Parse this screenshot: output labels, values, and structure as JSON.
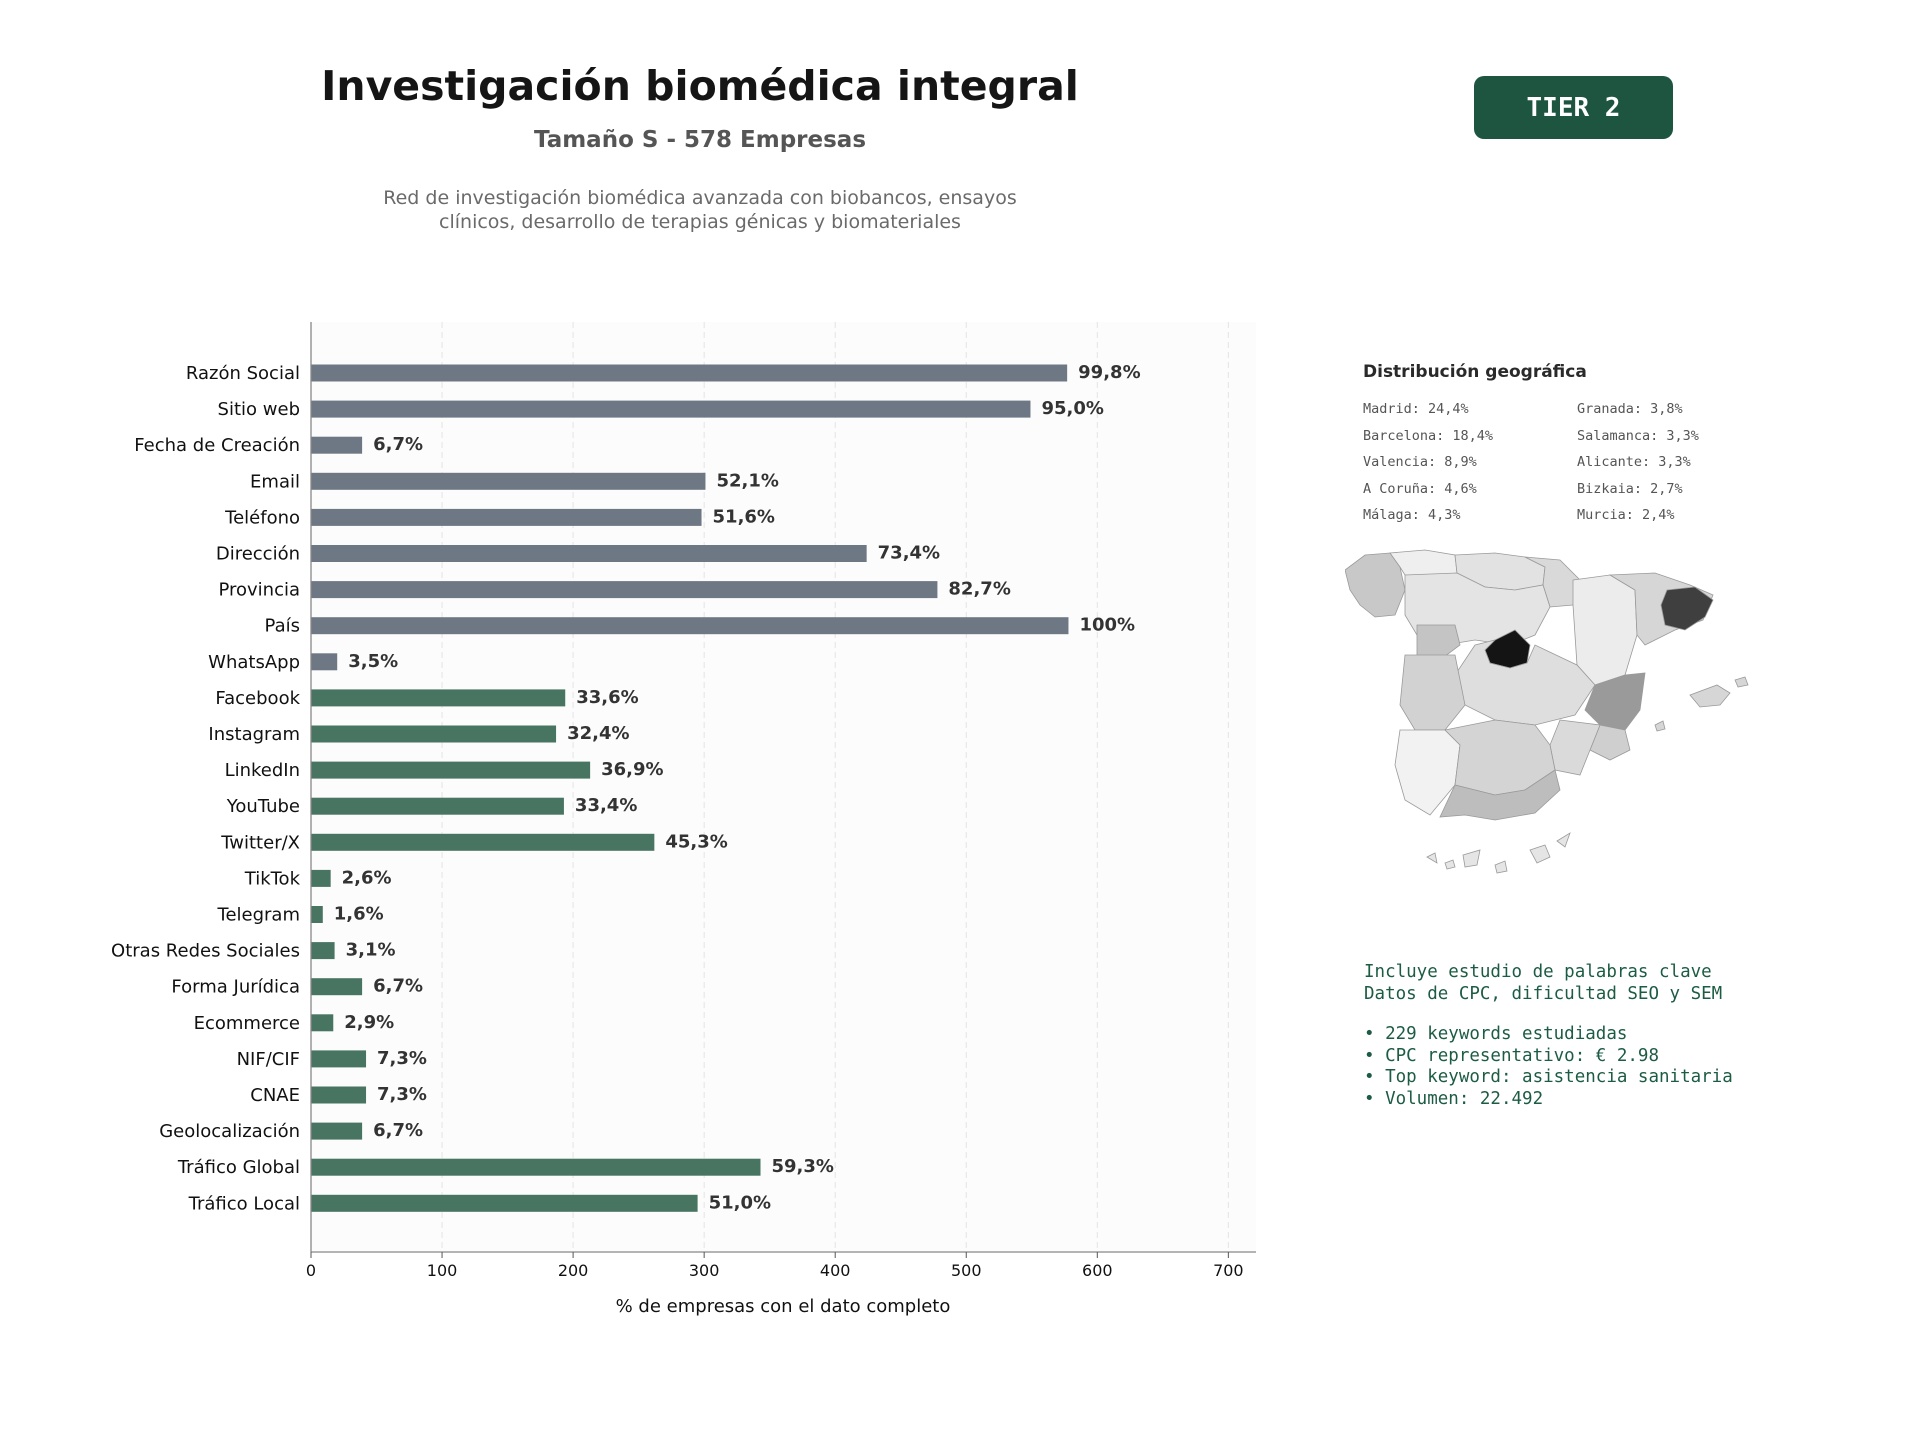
{
  "header": {
    "title": "Investigación biomédica integral",
    "subtitle": "Tamaño S - 578 Empresas",
    "description_line1": "Red de investigación biomédica avanzada con biobancos, ensayos",
    "description_line2": "clínicos, desarrollo de terapias génicas y biomateriales",
    "tier_badge": "TIER 2"
  },
  "colors": {
    "badge": "#1d5541",
    "contact_bar": "#6e7884",
    "social_bar": "#487462",
    "value_label": "#333333",
    "keyword_text": "#1d5c44"
  },
  "chart_data": {
    "type": "bar",
    "orientation": "horizontal",
    "xlabel": "% de empresas con el dato completo",
    "xlim": [
      0,
      722
    ],
    "xticks": [
      0,
      100,
      200,
      300,
      400,
      500,
      600,
      700
    ],
    "grid": "vertical dashed",
    "categories": [
      "Razón Social",
      "Sitio web",
      "Fecha de Creación",
      "Email",
      "Teléfono",
      "Dirección",
      "Provincia",
      "País",
      "WhatsApp",
      "Facebook",
      "Instagram",
      "LinkedIn",
      "YouTube",
      "Twitter/X",
      "TikTok",
      "Telegram",
      "Otras Redes Sociales",
      "Forma Jurídica",
      "Ecommerce",
      "NIF/CIF",
      "CNAE",
      "Geolocalización",
      "Tráfico Global",
      "Tráfico Local"
    ],
    "values": [
      577,
      549,
      39,
      301,
      298,
      424,
      478,
      578,
      20,
      194,
      187,
      213,
      193,
      262,
      15,
      9,
      18,
      39,
      17,
      42,
      42,
      39,
      343,
      295
    ],
    "labels": [
      "99,8%",
      "95,0%",
      "6,7%",
      "52,1%",
      "51,6%",
      "73,4%",
      "82,7%",
      "100%",
      "3,5%",
      "33,6%",
      "32,4%",
      "36,9%",
      "33,4%",
      "45,3%",
      "2,6%",
      "1,6%",
      "3,1%",
      "6,7%",
      "2,9%",
      "7,3%",
      "7,3%",
      "6,7%",
      "59,3%",
      "51,0%"
    ],
    "groups": [
      "contact",
      "contact",
      "contact",
      "contact",
      "contact",
      "contact",
      "contact",
      "contact",
      "contact",
      "social",
      "social",
      "social",
      "social",
      "social",
      "social",
      "social",
      "social",
      "social",
      "social",
      "social",
      "social",
      "social",
      "social",
      "social"
    ]
  },
  "geo": {
    "title": "Distribución geográfica",
    "items": [
      "Madrid: 24,4%",
      "Granada: 3,8%",
      "Barcelona: 18,4%",
      "Salamanca: 3,3%",
      "Valencia: 8,9%",
      "Alicante: 3,3%",
      "A Coruña: 4,6%",
      "Bizkaia: 2,7%",
      "Málaga: 4,3%",
      "Murcia: 2,4%"
    ]
  },
  "keywords": {
    "line1": "Incluye estudio de palabras clave",
    "line2": "Datos de CPC, dificultad SEO y SEM",
    "bullets": [
      "• 229 keywords estudiadas",
      "• CPC representativo: € 2.98",
      "• Top keyword: asistencia sanitaria",
      "• Volumen: 22.492"
    ]
  }
}
